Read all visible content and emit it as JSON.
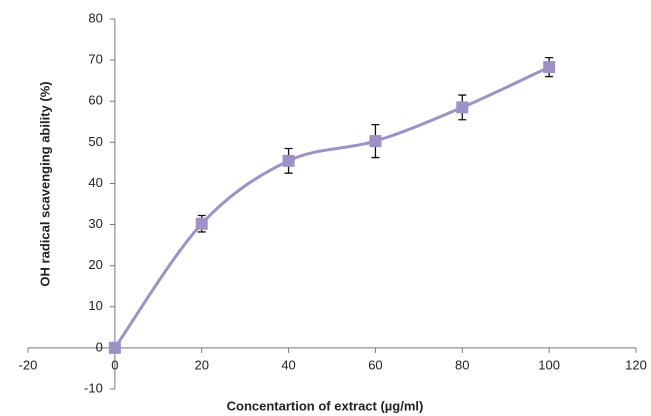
{
  "chart_data": {
    "type": "scatter",
    "xlabel": "Concentartion of extract (µg/ml)",
    "ylabel": "OH radical scavenging ability (%)",
    "x": [
      0,
      20,
      40,
      60,
      80,
      100
    ],
    "series": [
      {
        "color": "#9e91c8",
        "values": [
          0,
          30.2,
          45.5,
          50.3,
          58.5,
          68.3
        ],
        "errors": [
          0,
          2,
          3,
          4,
          3,
          2.3
        ]
      }
    ],
    "xlim": [
      -20,
      120
    ],
    "ylim": [
      -10,
      80
    ],
    "xticks": [
      -20,
      0,
      20,
      40,
      60,
      80,
      100,
      120
    ],
    "yticks": [
      -10,
      0,
      10,
      20,
      30,
      40,
      50,
      60,
      70,
      80
    ],
    "smooth": true
  }
}
